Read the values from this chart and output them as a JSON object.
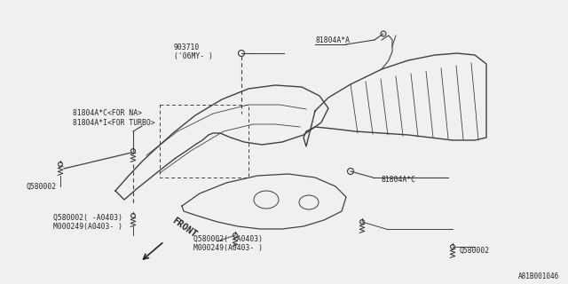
{
  "bg_color": "#f0f0f0",
  "part_number_bottom_right": "A81B001046",
  "labels": {
    "label_903710": "903710",
    "label_903710_sub": "('06MY- )",
    "label_na": "81804A*C<FOR NA>",
    "label_turbo": "81804A*I<FOR TURBO>",
    "label_q1": "Q580002",
    "label_q2a": "Q580002( -A0403)",
    "label_q2b": "M000249(A0403- )",
    "label_q3a": "Q580002( -A0403)",
    "label_q3b": "M000249(A0403- )",
    "label_81804c_right": "81804A*C",
    "label_81804a": "81804A*A",
    "label_q4": "Q580002",
    "label_front": "FRONT"
  },
  "line_color": "#404040",
  "text_color": "#222222",
  "bg_border_color": "#cccccc"
}
